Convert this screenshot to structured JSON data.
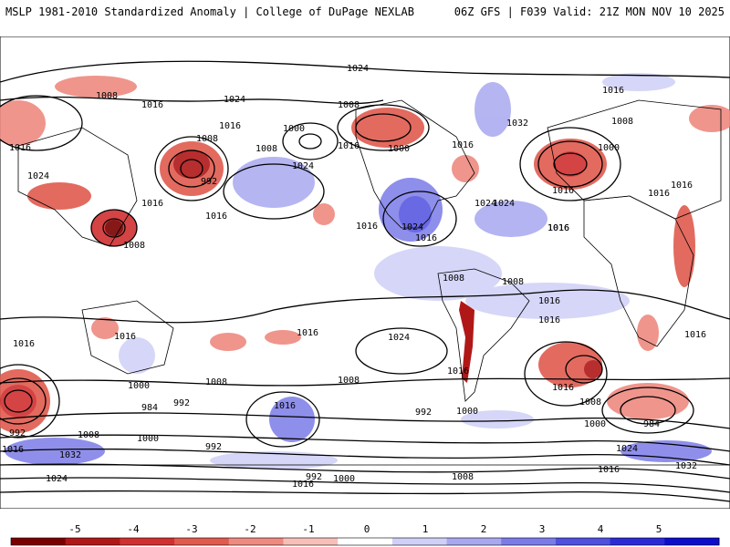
{
  "header": {
    "left": "MSLP 1981-2010 Standardized Anomaly | College of DuPage NEXLAB",
    "right": "06Z GFS | F039 Valid: 21Z MON NOV 10 2025"
  },
  "colorbar": {
    "ticks": [
      "-5",
      "-4",
      "-3",
      "-2",
      "-1",
      "0",
      "1",
      "2",
      "3",
      "4",
      "5"
    ],
    "colors": [
      "#7a0000",
      "#b01818",
      "#d03030",
      "#e05a4e",
      "#ee8a80",
      "#f7bfb8",
      "#ffffff",
      "#cfcff7",
      "#a8a8f0",
      "#7b7be8",
      "#4f4fe0",
      "#2a2ad6",
      "#0d0dcc"
    ]
  },
  "map": {
    "contour_labels": [
      "1024",
      "1008",
      "1016",
      "1024",
      "1008",
      "1016",
      "1016",
      "1008",
      "1000",
      "1016",
      "1016",
      "1008",
      "1024",
      "1016",
      "1000",
      "1016",
      "1024",
      "1032",
      "1016",
      "1008",
      "1000",
      "1016",
      "1016",
      "1016",
      "1024",
      "992",
      "1024",
      "1016",
      "1008",
      "1016",
      "1016",
      "1024",
      "1016",
      "1016",
      "1008",
      "1016",
      "1008",
      "1016",
      "1016",
      "1016",
      "1016",
      "1024",
      "1016",
      "1016",
      "1008",
      "1000",
      "992",
      "1008",
      "1016",
      "1000",
      "984",
      "992",
      "1008",
      "1000",
      "984",
      "992",
      "1032",
      "1016",
      "1000",
      "992",
      "1008",
      "1024",
      "992",
      "1000",
      "1016",
      "1008",
      "1024",
      "1016",
      "1032"
    ],
    "colors": {
      "high_anom": "#2a2ad6",
      "low_anom": "#b01818",
      "contour": "#000000",
      "land": "#000000"
    }
  }
}
